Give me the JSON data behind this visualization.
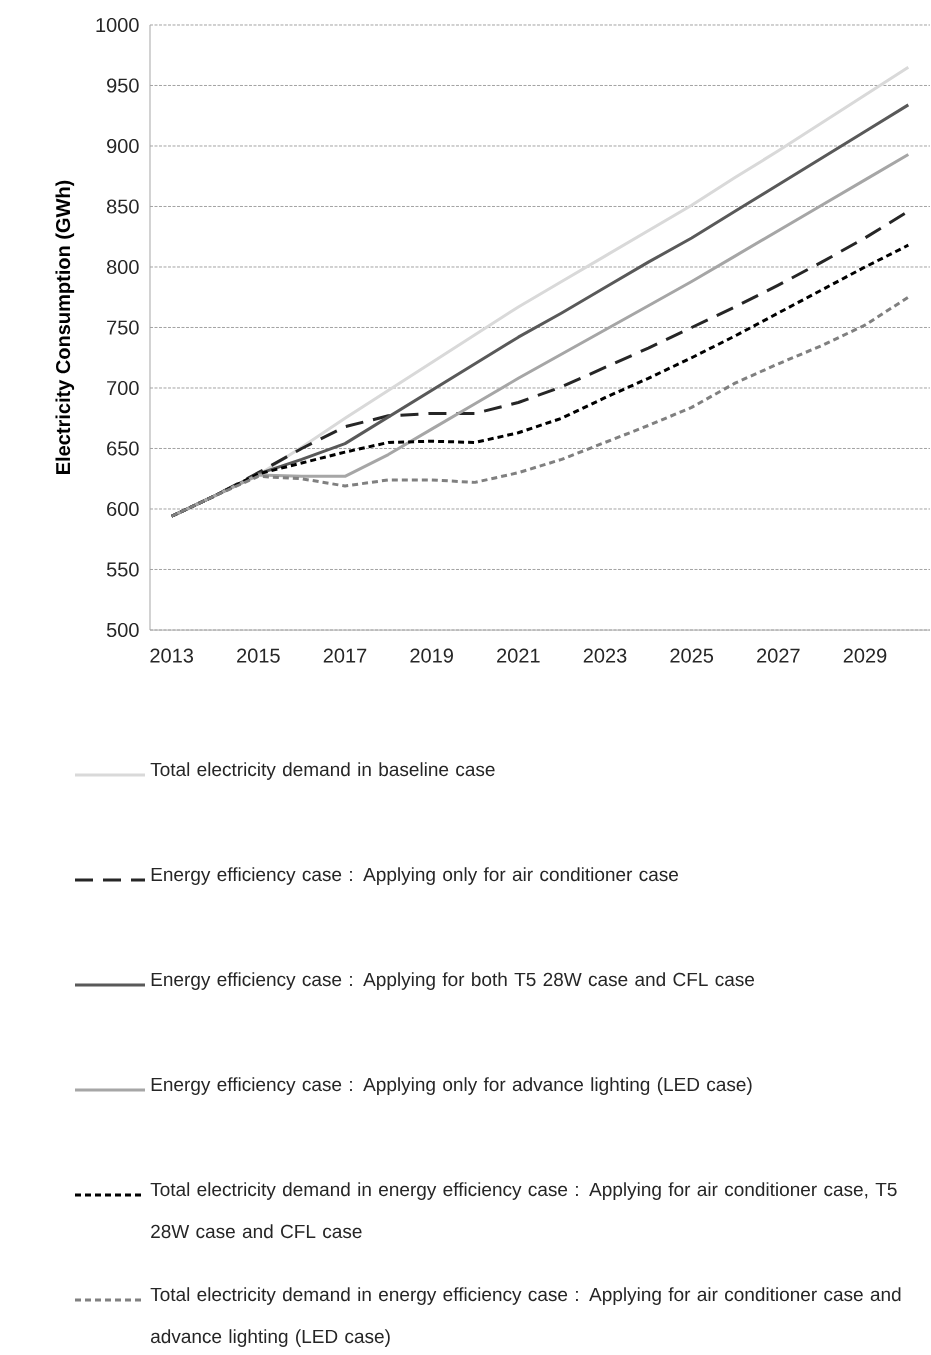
{
  "chart_data": {
    "type": "line",
    "ylabel": "Electricity Consumption (GWh)",
    "categories": [
      "2013",
      null,
      "2015",
      null,
      "2017",
      null,
      "2019",
      null,
      "2021",
      null,
      "2023",
      null,
      "2025",
      null,
      "2027",
      null,
      "2029",
      null
    ],
    "ylim": [
      500,
      1000
    ],
    "yticks": [
      500,
      550,
      600,
      650,
      700,
      750,
      800,
      850,
      900,
      950,
      1000
    ],
    "grid": "y",
    "legend": "bottom",
    "marker": "none",
    "series": [
      {
        "name": "Total electricity demand in baseline case",
        "color": "#d9d9d9",
        "line_style": "solid",
        "values": [
          594,
          611,
          628,
          651,
          675,
          698,
          721,
          744,
          767,
          788,
          809,
          830,
          851,
          874,
          896,
          919,
          942,
          965
        ]
      },
      {
        "name": "Energy efficiency case : Applying only for air conditioner case",
        "color": "#262626",
        "line_style": "dashed",
        "values": [
          594,
          611,
          630,
          650,
          668,
          677,
          679,
          679,
          688,
          701,
          717,
          733,
          750,
          767,
          785,
          804,
          824,
          846
        ]
      },
      {
        "name": "Energy efficiency case : Applying for both T5 28W case and CFL case",
        "color": "#595959",
        "line_style": "solid",
        "values": [
          594,
          611,
          629,
          641,
          654,
          676,
          698,
          720,
          742,
          762,
          783,
          804,
          824,
          846,
          868,
          890,
          912,
          934
        ]
      },
      {
        "name": "Energy efficiency case : Applying only for advance lighting (LED case)",
        "color": "#a6a6a6",
        "line_style": "solid",
        "values": [
          594,
          611,
          628,
          627,
          627,
          645,
          666,
          687,
          708,
          728,
          748,
          768,
          788,
          809,
          830,
          851,
          872,
          893
        ]
      },
      {
        "name": "Total electricity demand in energy efficiency case : Applying for air conditioner case, T5 28W case and CFL case",
        "color": "#000000",
        "line_style": "dotted",
        "values": [
          594,
          611,
          629,
          638,
          647,
          655,
          656,
          655,
          663,
          675,
          692,
          708,
          725,
          743,
          762,
          781,
          800,
          818
        ]
      },
      {
        "name": "Total electricity demand in energy efficiency case : Applying for air conditioner case and advance lighting (LED case)",
        "color": "#808080",
        "line_style": "dotted",
        "values": [
          594,
          611,
          627,
          625,
          619,
          624,
          624,
          622,
          630,
          641,
          655,
          669,
          684,
          704,
          720,
          735,
          752,
          775
        ]
      }
    ]
  }
}
